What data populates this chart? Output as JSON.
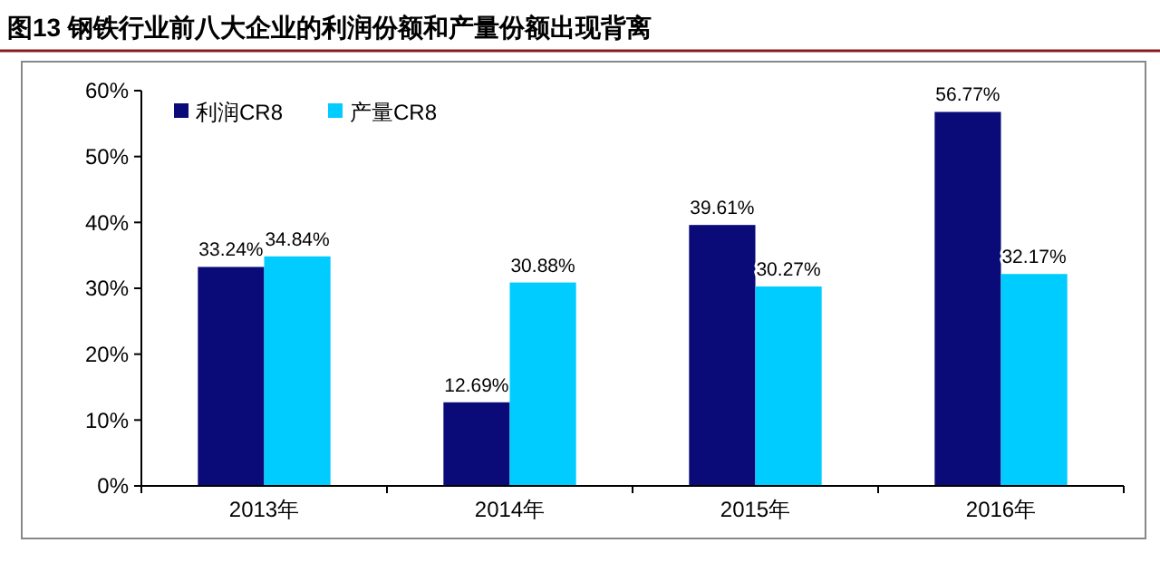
{
  "chart_data": {
    "type": "bar",
    "title": "图13 钢铁行业前八大企业的利润份额和产量份额出现背离",
    "categories": [
      "2013年",
      "2014年",
      "2015年",
      "2016年"
    ],
    "series": [
      {
        "name": "利润CR8",
        "color": "#0a0a78",
        "values": [
          33.24,
          12.69,
          39.61,
          56.77
        ],
        "value_labels": [
          "33.24%",
          "12.69%",
          "39.61%",
          "56.77%"
        ]
      },
      {
        "name": "产量CR8",
        "color": "#00ccff",
        "values": [
          34.84,
          30.88,
          30.27,
          32.17
        ],
        "value_labels": [
          "34.84%",
          "30.88%",
          "30.27%",
          "32.17%"
        ]
      }
    ],
    "ylim": [
      0,
      60
    ],
    "yticks": [
      {
        "value": 0,
        "label": "0%"
      },
      {
        "value": 10,
        "label": "10%"
      },
      {
        "value": 20,
        "label": "20%"
      },
      {
        "value": 30,
        "label": "30%"
      },
      {
        "value": 40,
        "label": "40%"
      },
      {
        "value": 50,
        "label": "50%"
      },
      {
        "value": 60,
        "label": "60%"
      }
    ],
    "legend": "top left",
    "grid": false
  }
}
